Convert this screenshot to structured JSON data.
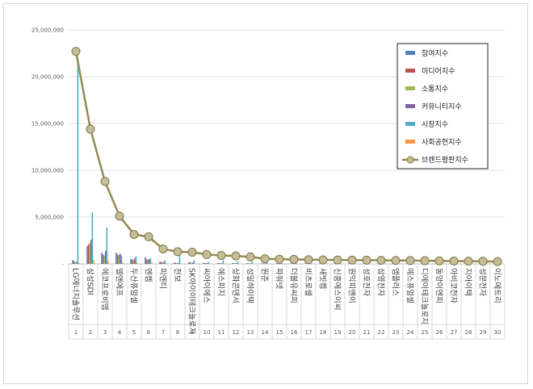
{
  "chart_data": {
    "type": "bar",
    "categories": [
      "LG에너지솔루션",
      "삼성SDI",
      "에코프로비엠",
      "엘앤에프",
      "두산퓨얼셀",
      "엔켐",
      "피엔티",
      "천보",
      "SK아이이테크놀로지",
      "씨아이에스",
      "에스피지",
      "상화콘덴서",
      "성일하이텍",
      "원준",
      "파워넷",
      "더블유씨피",
      "비츠로셀",
      "새빗켐",
      "신흥에스이씨",
      "원익피앤이",
      "성호전자",
      "삼영전자",
      "엠플러스",
      "에스퓨얼셀",
      "디에이테크놀로지",
      "동양이엔피",
      "아비코전자",
      "지아이텍",
      "성문전자",
      "이노메트리"
    ],
    "ranks": [
      "1",
      "2",
      "3",
      "4",
      "5",
      "6",
      "7",
      "8",
      "9",
      "10",
      "11",
      "12",
      "13",
      "14",
      "15",
      "16",
      "17",
      "18",
      "19",
      "20",
      "21",
      "22",
      "23",
      "24",
      "25",
      "26",
      "27",
      "28",
      "29",
      "30"
    ],
    "series": [
      {
        "name": "참여지수",
        "color": "#4f81bd",
        "values": [
          400000,
          1900000,
          1200000,
          1200000,
          500000,
          700000,
          250000,
          150000,
          200000,
          120000,
          100000,
          100000,
          80000,
          60000,
          50000,
          50000,
          50000,
          40000,
          40000,
          40000,
          30000,
          30000,
          30000,
          30000,
          30000,
          20000,
          20000,
          20000,
          20000,
          20000
        ]
      },
      {
        "name": "미디어지수",
        "color": "#c0504d",
        "values": [
          300000,
          2100000,
          1000000,
          1000000,
          500000,
          500000,
          200000,
          120000,
          150000,
          100000,
          80000,
          80000,
          60000,
          50000,
          40000,
          40000,
          40000,
          30000,
          30000,
          30000,
          20000,
          20000,
          20000,
          20000,
          20000,
          20000,
          20000,
          20000,
          15000,
          15000
        ]
      },
      {
        "name": "소통지수",
        "color": "#9bbb59",
        "values": [
          150000,
          2200000,
          900000,
          950000,
          400000,
          450000,
          150000,
          80000,
          100000,
          80000,
          60000,
          60000,
          50000,
          40000,
          30000,
          30000,
          30000,
          20000,
          20000,
          20000,
          20000,
          20000,
          20000,
          15000,
          15000,
          15000,
          15000,
          15000,
          10000,
          10000
        ]
      },
      {
        "name": "커뮤니티지수",
        "color": "#8064a2",
        "values": [
          200000,
          2600000,
          1400000,
          1100000,
          600000,
          500000,
          200000,
          100000,
          150000,
          100000,
          80000,
          80000,
          60000,
          50000,
          40000,
          40000,
          30000,
          30000,
          30000,
          30000,
          20000,
          20000,
          20000,
          20000,
          20000,
          15000,
          15000,
          15000,
          15000,
          10000
        ]
      },
      {
        "name": "시장지수",
        "color": "#4bacc6",
        "values": [
          21800000,
          5500000,
          3900000,
          900000,
          800000,
          600000,
          400000,
          900000,
          400000,
          200000,
          400000,
          300000,
          250000,
          150000,
          150000,
          150000,
          100000,
          100000,
          100000,
          100000,
          80000,
          80000,
          70000,
          70000,
          60000,
          60000,
          50000,
          50000,
          50000,
          40000
        ]
      },
      {
        "name": "사회공헌지수",
        "color": "#f79646",
        "values": [
          100000,
          400000,
          300000,
          150000,
          100000,
          100000,
          50000,
          30000,
          40000,
          30000,
          20000,
          20000,
          20000,
          10000,
          10000,
          10000,
          10000,
          10000,
          10000,
          10000,
          10000,
          10000,
          10000,
          10000,
          10000,
          10000,
          10000,
          10000,
          10000,
          10000
        ]
      },
      {
        "name": "브랜드평판지수",
        "color": "#948a54",
        "values": [
          22700000,
          14400000,
          8800000,
          5100000,
          3150000,
          2900000,
          1600000,
          1300000,
          1250000,
          1000000,
          900000,
          850000,
          750000,
          550000,
          500000,
          480000,
          450000,
          430000,
          420000,
          410000,
          400000,
          390000,
          370000,
          360000,
          340000,
          320000,
          300000,
          290000,
          280000,
          250000
        ]
      }
    ],
    "yticks": [
      "25,000,000",
      "20,000,000",
      "15,000,000",
      "10,000,000",
      "5,000,000",
      "-"
    ],
    "ylim": [
      0,
      25000000
    ],
    "grid": true,
    "legend": "top-right"
  }
}
